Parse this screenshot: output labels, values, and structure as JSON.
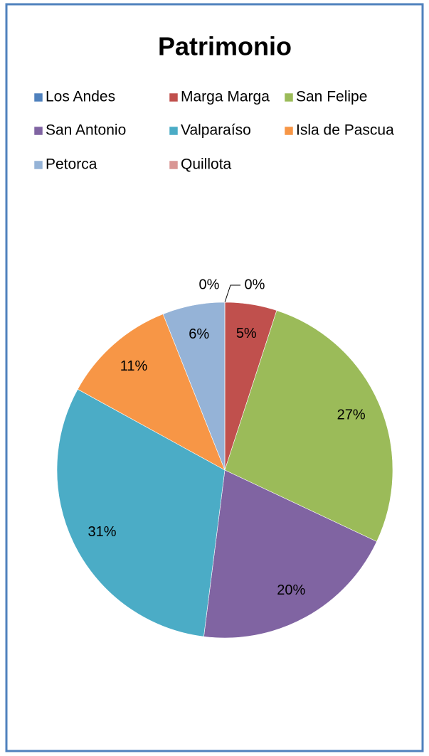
{
  "chart_data": {
    "type": "pie",
    "title": "Patrimonio",
    "categories": [
      "Los Andes",
      "Marga Marga",
      "San Felipe",
      "San Antonio",
      "Valparaíso",
      "Isla de Pascua",
      "Petorca",
      "Quillota"
    ],
    "values": [
      0,
      5,
      27,
      20,
      31,
      11,
      6,
      0
    ],
    "value_labels": [
      "0%",
      "5%",
      "27%",
      "20%",
      "31%",
      "11%",
      "6%",
      "0%"
    ],
    "colors": [
      "#4f81bd",
      "#c0504d",
      "#9bbb59",
      "#8064a2",
      "#4bacc6",
      "#f79646",
      "#95b3d7",
      "#d99694"
    ],
    "legend": "top"
  }
}
